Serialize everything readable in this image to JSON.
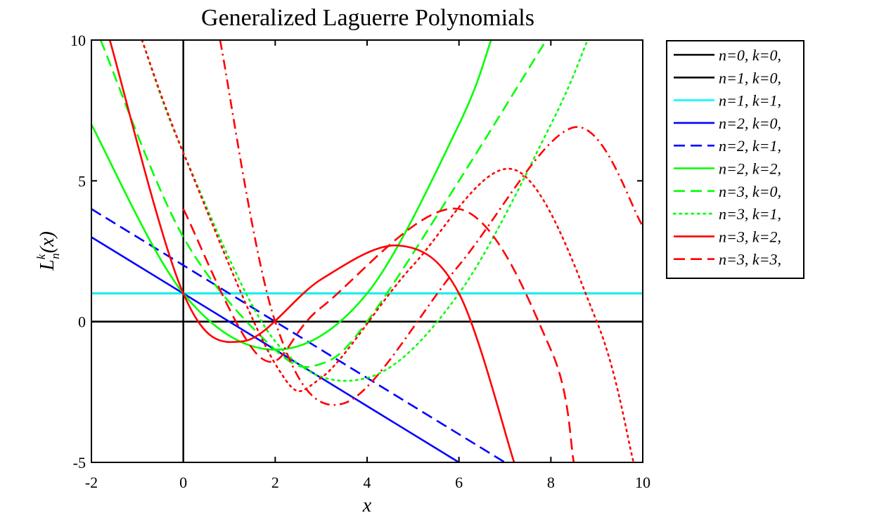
{
  "chart_data": {
    "type": "line",
    "title": "Generalized Laguerre Polynomials",
    "xlabel": "x",
    "ylabel": "L_n^k(x)",
    "ylabel_main": "L",
    "ylabel_sub": "n",
    "ylabel_sup": "k",
    "ylabel_arg": "(x)",
    "xlim": [
      -2,
      10
    ],
    "ylim": [
      -5,
      10
    ],
    "xticks": [
      -2,
      0,
      2,
      4,
      6,
      8,
      10
    ],
    "yticks": [
      -5,
      0,
      5,
      10
    ],
    "grid": false,
    "legend_position": "outside-right",
    "series": [
      {
        "name": "n=0, k=0,",
        "n": 0,
        "k": 0,
        "color": "#000000",
        "style": "solid",
        "points": [
          [
            -2,
            1
          ],
          [
            0,
            1
          ],
          [
            4,
            1
          ],
          [
            8,
            1
          ],
          [
            10,
            1
          ]
        ]
      },
      {
        "name": "n=1, k=0,",
        "n": 1,
        "k": 0,
        "color": "#000000",
        "style": "solid",
        "points": [
          [
            -2,
            0
          ],
          [
            0,
            0
          ],
          [
            4,
            0
          ],
          [
            8,
            0
          ],
          [
            10,
            0
          ]
        ]
      },
      {
        "name": "n=1, k=1,",
        "n": 1,
        "k": 1,
        "color": "#00ffff",
        "style": "solid",
        "points": [
          [
            -2,
            1
          ],
          [
            0,
            1
          ],
          [
            4,
            1
          ],
          [
            8,
            1
          ],
          [
            10,
            1
          ]
        ]
      },
      {
        "name": "n=2, k=0,",
        "n": 2,
        "k": 0,
        "color": "#0000ff",
        "style": "solid",
        "points": [
          [
            -2,
            3
          ],
          [
            0,
            1
          ],
          [
            2,
            -1
          ],
          [
            4,
            -3
          ],
          [
            6,
            -5
          ]
        ]
      },
      {
        "name": "n=2, k=1,",
        "n": 2,
        "k": 1,
        "color": "#0000ff",
        "style": "dash",
        "points": [
          [
            -2,
            4
          ],
          [
            0,
            2
          ],
          [
            2,
            0
          ],
          [
            4,
            -2
          ],
          [
            7,
            -5
          ]
        ]
      },
      {
        "name": "n=2, k=2,",
        "n": 2,
        "k": 2,
        "color": "#00ff00",
        "style": "solid",
        "points": [
          [
            -2,
            7
          ],
          [
            0,
            1
          ],
          [
            2,
            -1
          ],
          [
            4,
            1
          ],
          [
            6,
            7
          ],
          [
            6.7,
            10
          ]
        ]
      },
      {
        "name": "n=3, k=0,",
        "n": 3,
        "k": 0,
        "color": "#00ff00",
        "style": "dash",
        "points": [
          [
            -1.8,
            10
          ],
          [
            0,
            3
          ],
          [
            2,
            -1
          ],
          [
            3,
            -1.5
          ],
          [
            4,
            0
          ],
          [
            6,
            5
          ],
          [
            7.9,
            10
          ]
        ]
      },
      {
        "name": "n=3, k=1,",
        "n": 3,
        "k": 1,
        "color": "#00ff00",
        "style": "dot",
        "points": [
          [
            -0.9,
            10
          ],
          [
            0,
            6
          ],
          [
            2,
            -0.7
          ],
          [
            4,
            -2
          ],
          [
            6,
            1
          ],
          [
            8,
            7
          ],
          [
            8.8,
            10
          ]
        ]
      },
      {
        "name": "n=3, k=2,",
        "n": 3,
        "k": 2,
        "color": "#ff0000",
        "style": "solid",
        "points": [
          [
            -1.6,
            10
          ],
          [
            0,
            1
          ],
          [
            1.3,
            -0.7
          ],
          [
            3,
            1.5
          ],
          [
            4.7,
            2.7
          ],
          [
            6,
            1
          ],
          [
            7.2,
            -5
          ]
        ]
      },
      {
        "name": "n=3, k=3,",
        "n": 3,
        "k": 3,
        "color": "#ff0000",
        "style": "dash",
        "points": [
          [
            0,
            4
          ],
          [
            1.7,
            -1.3
          ],
          [
            3,
            0.5
          ],
          [
            6,
            4
          ],
          [
            8,
            -1
          ],
          [
            8.5,
            -5
          ]
        ]
      }
    ],
    "unlabeled_series": [
      {
        "color": "#ff0000",
        "style": "dot",
        "points": [
          [
            -0.9,
            10
          ],
          [
            0,
            6
          ],
          [
            2,
            -1.5
          ],
          [
            3,
            -2
          ],
          [
            5,
            2
          ],
          [
            7.2,
            5.4
          ],
          [
            9,
            0
          ],
          [
            9.8,
            -5
          ]
        ]
      },
      {
        "color": "#ff0000",
        "style": "dashdot",
        "points": [
          [
            0.8,
            10
          ],
          [
            2,
            0
          ],
          [
            3.5,
            -2.9
          ],
          [
            6,
            2
          ],
          [
            8.5,
            6.9
          ],
          [
            10,
            3.4
          ]
        ]
      }
    ]
  }
}
